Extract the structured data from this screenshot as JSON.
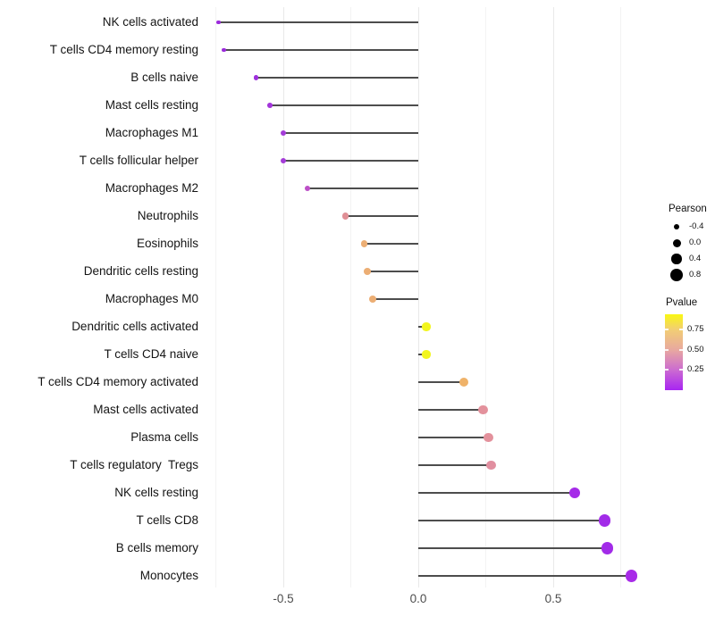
{
  "chart_data": {
    "type": "scatter",
    "subtype": "lollipop",
    "orientation": "horizontal",
    "title": "",
    "xlabel": "",
    "ylabel": "",
    "x_axis": {
      "ticks": [
        -0.5,
        0.0,
        0.5
      ],
      "tick_labels": [
        "-0.5",
        "0.0",
        "0.5"
      ],
      "minor_ticks": [
        -0.75,
        -0.25,
        0.25,
        0.75
      ],
      "range": [
        -0.82,
        0.87
      ]
    },
    "baseline": 0,
    "points": [
      {
        "label": "NK cells activated",
        "pearson": -0.74,
        "color": "#9b2bdb"
      },
      {
        "label": "T cells CD4 memory resting",
        "pearson": -0.72,
        "color": "#9b2bdb"
      },
      {
        "label": "B cells naive",
        "pearson": -0.6,
        "color": "#9e30dd"
      },
      {
        "label": "Mast cells resting",
        "pearson": -0.55,
        "color": "#a335da"
      },
      {
        "label": "Macrophages M1",
        "pearson": -0.5,
        "color": "#a43cd8"
      },
      {
        "label": "T cells follicular helper",
        "pearson": -0.5,
        "color": "#a43cd8"
      },
      {
        "label": "Macrophages M2",
        "pearson": -0.41,
        "color": "#bc4fc7"
      },
      {
        "label": "Neutrophils",
        "pearson": -0.27,
        "color": "#e08f96"
      },
      {
        "label": "Eosinophils",
        "pearson": -0.2,
        "color": "#ecae74"
      },
      {
        "label": "Dendritic cells resting",
        "pearson": -0.19,
        "color": "#ecae74"
      },
      {
        "label": "Macrophages M0",
        "pearson": -0.17,
        "color": "#ecae74"
      },
      {
        "label": "Dendritic cells activated",
        "pearson": 0.03,
        "color": "#f2f51e"
      },
      {
        "label": "T cells CD4 naive",
        "pearson": 0.03,
        "color": "#f2f51e"
      },
      {
        "label": "T cells CD4 memory activated",
        "pearson": 0.17,
        "color": "#efb269"
      },
      {
        "label": "Mast cells activated",
        "pearson": 0.24,
        "color": "#e3919c"
      },
      {
        "label": "Plasma cells",
        "pearson": 0.26,
        "color": "#e3919c"
      },
      {
        "label": "T cells regulatory  Tregs",
        "pearson": 0.27,
        "color": "#e18fa0"
      },
      {
        "label": "NK cells resting",
        "pearson": 0.58,
        "color": "#a52be8"
      },
      {
        "label": "T cells CD8",
        "pearson": 0.69,
        "color": "#a22be8"
      },
      {
        "label": "B cells memory",
        "pearson": 0.7,
        "color": "#a22be8"
      },
      {
        "label": "Monocytes",
        "pearson": 0.79,
        "color": "#a82be8"
      }
    ],
    "legend_position": "right",
    "legends": {
      "size": {
        "title": "Pearson",
        "dot_color": "#000000",
        "entries": [
          {
            "label": "-0.4",
            "value": -0.4
          },
          {
            "label": "0.0",
            "value": 0.0
          },
          {
            "label": "0.4",
            "value": 0.4
          },
          {
            "label": "0.8",
            "value": 0.8
          }
        ]
      },
      "color": {
        "title": "Pvalue",
        "tick_labels": [
          "0.75",
          "0.50",
          "0.25"
        ],
        "gradient_stops": [
          {
            "pos": 0.0,
            "color": "#f9f712"
          },
          {
            "pos": 0.2,
            "color": "#f2ce74"
          },
          {
            "pos": 0.47,
            "color": "#e8a8a0"
          },
          {
            "pos": 0.73,
            "color": "#cc6cd0"
          },
          {
            "pos": 1.0,
            "color": "#a825f2"
          }
        ]
      }
    },
    "style": {
      "segment_color": "#4d4d4d",
      "major_grid_color": "#e9e9e9",
      "minor_grid_color": "#f3f3f3",
      "background": "#ffffff"
    }
  }
}
